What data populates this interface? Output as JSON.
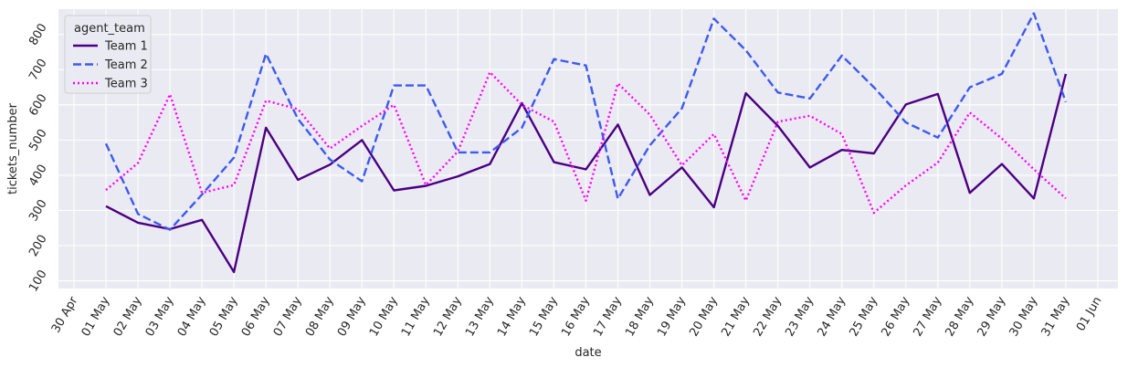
{
  "chart_data": {
    "type": "line",
    "xlabel": "date",
    "ylabel": "tickets_number",
    "x_ticks": [
      "30 Apr",
      "01 May",
      "02 May",
      "03 May",
      "04 May",
      "05 May",
      "06 May",
      "07 May",
      "08 May",
      "09 May",
      "10 May",
      "11 May",
      "12 May",
      "13 May",
      "14 May",
      "15 May",
      "16 May",
      "17 May",
      "18 May",
      "19 May",
      "20 May",
      "21 May",
      "22 May",
      "23 May",
      "24 May",
      "25 May",
      "26 May",
      "27 May",
      "28 May",
      "29 May",
      "30 May",
      "31 May",
      "01 Jun"
    ],
    "x": [
      "01 May",
      "02 May",
      "03 May",
      "04 May",
      "05 May",
      "06 May",
      "07 May",
      "08 May",
      "09 May",
      "10 May",
      "11 May",
      "12 May",
      "13 May",
      "14 May",
      "15 May",
      "16 May",
      "17 May",
      "18 May",
      "19 May",
      "20 May",
      "21 May",
      "22 May",
      "23 May",
      "24 May",
      "25 May",
      "26 May",
      "27 May",
      "28 May",
      "29 May",
      "30 May",
      "31 May"
    ],
    "y_ticks": [
      100,
      200,
      300,
      400,
      500,
      600,
      700,
      800
    ],
    "ylim": [
      78,
      872
    ],
    "grid": true,
    "legend": {
      "title": "agent_team",
      "placement": "top-left"
    },
    "series": [
      {
        "name": "Team 1",
        "color": "#4b0082",
        "dash": "solid",
        "values": [
          312,
          265,
          247,
          273,
          125,
          535,
          387,
          430,
          500,
          357,
          370,
          397,
          432,
          605,
          437,
          417,
          544,
          344,
          422,
          309,
          633,
          540,
          422,
          472,
          462,
          601,
          631,
          350,
          432,
          334,
          688
        ]
      },
      {
        "name": "Team 2",
        "color": "#3d5af1",
        "dash": "dashed",
        "values": [
          490,
          290,
          245,
          345,
          450,
          745,
          560,
          445,
          383,
          655,
          655,
          465,
          465,
          535,
          730,
          712,
          333,
          485,
          590,
          845,
          755,
          635,
          618,
          740,
          650,
          550,
          507,
          650,
          688,
          860,
          608
        ]
      },
      {
        "name": "Team 3",
        "color": "#ff00ff",
        "dash": "dotted",
        "values": [
          358,
          435,
          630,
          350,
          372,
          612,
          588,
          476,
          540,
          600,
          372,
          468,
          693,
          600,
          552,
          328,
          661,
          572,
          428,
          517,
          328,
          552,
          569,
          517,
          293,
          371,
          436,
          578,
          504,
          417,
          334
        ]
      }
    ]
  }
}
